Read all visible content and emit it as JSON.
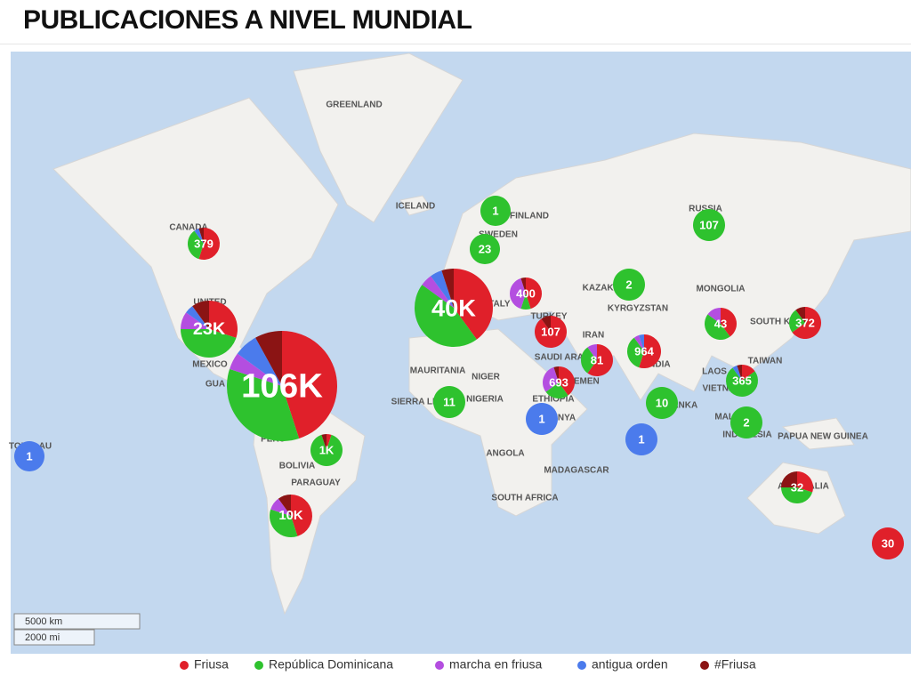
{
  "header": {
    "title": "PUBLICACIONES A NIVEL MUNDIAL"
  },
  "map": {
    "labels": [
      "GREENLAND",
      "ICELAND",
      "CANADA",
      "UNITED",
      "MEXICO",
      "GUA",
      "PERU",
      "BOLIVIA",
      "PARAGUAY",
      "RUSSIA",
      "FINLAND",
      "SWEDEN",
      "ITALY",
      "TURKEY",
      "KAZAKHSTAN",
      "KYRGYZSTAN",
      "MONGOLIA",
      "IRAN",
      "SAUDI ARABIA",
      "YEMEN",
      "ETHIOPIA",
      "INDIA",
      "SRI LANKA",
      "MAURITANIA",
      "NIGER",
      "NIGERIA",
      "SIERRA LEONE",
      "KENYA",
      "ANGOLA",
      "MADAGASCAR",
      "SOUTH AFRICA",
      "SOUTH KOREA",
      "TAIWAN",
      "LAOS",
      "VIETNAM",
      "MALAYSIA",
      "INDONESIA",
      "PAPUA NEW GUINEA",
      "AUSTRALIA",
      "TOKELAU"
    ],
    "clusters": [
      {
        "label": "379",
        "shares": [
          55,
          35,
          0,
          5,
          5
        ]
      },
      {
        "label": "23K",
        "shares": [
          30,
          45,
          10,
          5,
          10
        ]
      },
      {
        "label": "106K",
        "shares": [
          45,
          35,
          5,
          7,
          8
        ]
      },
      {
        "label": "1K",
        "shares": [
          5,
          90,
          0,
          0,
          5
        ]
      },
      {
        "label": "10K",
        "shares": [
          45,
          35,
          10,
          0,
          10
        ]
      },
      {
        "label": "1",
        "shares": [
          0,
          0,
          0,
          100,
          0
        ]
      },
      {
        "label": "40K",
        "shares": [
          40,
          45,
          5,
          5,
          5
        ]
      },
      {
        "label": "1",
        "shares": [
          0,
          100,
          0,
          0,
          0
        ]
      },
      {
        "label": "23",
        "shares": [
          0,
          100,
          0,
          0,
          0
        ]
      },
      {
        "label": "400",
        "shares": [
          45,
          10,
          40,
          0,
          5
        ]
      },
      {
        "label": "107",
        "shares": [
          90,
          0,
          0,
          0,
          10
        ]
      },
      {
        "label": "693",
        "shares": [
          40,
          25,
          30,
          0,
          5
        ]
      },
      {
        "label": "81",
        "shares": [
          60,
          30,
          10,
          0,
          0
        ]
      },
      {
        "label": "964",
        "shares": [
          55,
          35,
          5,
          5,
          0
        ]
      },
      {
        "label": "11",
        "shares": [
          0,
          100,
          0,
          0,
          0
        ]
      },
      {
        "label": "1",
        "shares": [
          0,
          0,
          0,
          100,
          0
        ]
      },
      {
        "label": "1",
        "shares": [
          0,
          0,
          0,
          100,
          0
        ]
      },
      {
        "label": "10",
        "shares": [
          0,
          100,
          0,
          0,
          0
        ]
      },
      {
        "label": "2",
        "shares": [
          0,
          100,
          0,
          0,
          0
        ]
      },
      {
        "label": "107",
        "shares": [
          0,
          100,
          0,
          0,
          0
        ]
      },
      {
        "label": "43",
        "shares": [
          40,
          45,
          15,
          0,
          0
        ]
      },
      {
        "label": "372",
        "shares": [
          65,
          25,
          0,
          0,
          10
        ]
      },
      {
        "label": "365",
        "shares": [
          15,
          75,
          0,
          5,
          5
        ]
      },
      {
        "label": "2",
        "shares": [
          0,
          100,
          0,
          0,
          0
        ]
      },
      {
        "label": "32",
        "shares": [
          30,
          45,
          0,
          0,
          25
        ]
      },
      {
        "label": "30",
        "shares": [
          100,
          0,
          0,
          0,
          0
        ]
      }
    ],
    "scale": [
      "5000 km",
      "2000 mi"
    ]
  },
  "legend": [
    {
      "name": "Friusa",
      "color": "#e0202a"
    },
    {
      "name": "República Dominicana",
      "color": "#2ec22e"
    },
    {
      "name": "marcha en friusa",
      "color": "#b44ee0"
    },
    {
      "name": "antigua orden",
      "color": "#4b7bec"
    },
    {
      "name": "#Friusa",
      "color": "#8b1414"
    }
  ]
}
